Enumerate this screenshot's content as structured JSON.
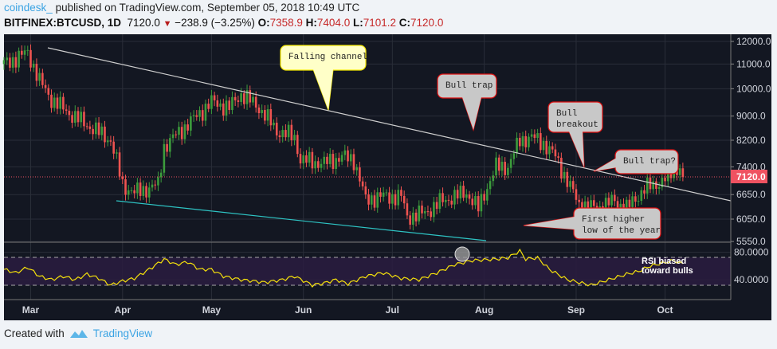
{
  "header": {
    "user": "coindesk_",
    "published": "published on TradingView.com, September 05, 2018 10:49 UTC",
    "symbol": "BITFINEX:BTCUSD, 1D",
    "last": "7120.0",
    "change": "−238.9 (−3.25%)",
    "o_label": "O:",
    "o": "7358.9",
    "h_label": "H:",
    "h": "7404.0",
    "l_label": "L:",
    "l": "7101.2",
    "c_label": "C:",
    "c": "7120.0"
  },
  "footer": {
    "created": "Created with",
    "brand": "TradingView"
  },
  "colors": {
    "bg": "#131722",
    "up": "#26a69a",
    "upc": "#3c9c3c",
    "down": "#ef5350",
    "rsi": "#f5e10b",
    "price_tag": "#ef5261",
    "channel_upper": "#cfcfcf",
    "channel_lower": "#2ec4c4"
  },
  "chart_data": {
    "type": "candlestick",
    "price_axis": {
      "scale": "log",
      "ticks": [
        "12000.0",
        "11000.0",
        "10000.0",
        "9000.0",
        "8200.0",
        "7400.0",
        "6650.0",
        "6050.0",
        "5550.0"
      ],
      "last_price_label": "7120.0"
    },
    "rsi_axis": {
      "ticks": [
        "80.0000",
        "40.0000"
      ],
      "bands": [
        30,
        70
      ]
    },
    "time_axis": [
      "Mar",
      "Apr",
      "May",
      "Jun",
      "Jul",
      "Aug",
      "Sep",
      "Oct"
    ],
    "close_keypoints": [
      [
        0,
        11000
      ],
      [
        8,
        11500
      ],
      [
        12,
        10300
      ],
      [
        16,
        9600
      ],
      [
        22,
        9100
      ],
      [
        28,
        8700
      ],
      [
        36,
        8200
      ],
      [
        40,
        6900
      ],
      [
        44,
        6700
      ],
      [
        52,
        6900
      ],
      [
        54,
        8000
      ],
      [
        64,
        8900
      ],
      [
        70,
        9500
      ],
      [
        76,
        9300
      ],
      [
        80,
        9800
      ],
      [
        86,
        9300
      ],
      [
        92,
        8500
      ],
      [
        98,
        8300
      ],
      [
        100,
        7600
      ],
      [
        108,
        7500
      ],
      [
        114,
        7700
      ],
      [
        118,
        7600
      ],
      [
        122,
        6500
      ],
      [
        126,
        6600
      ],
      [
        134,
        6600
      ],
      [
        136,
        6100
      ],
      [
        142,
        6200
      ],
      [
        148,
        6500
      ],
      [
        156,
        6700
      ],
      [
        160,
        6300
      ],
      [
        166,
        7400
      ],
      [
        170,
        7400
      ],
      [
        174,
        8200
      ],
      [
        178,
        8300
      ],
      [
        182,
        8100
      ],
      [
        186,
        7700
      ],
      [
        190,
        7000
      ],
      [
        194,
        6400
      ],
      [
        200,
        6300
      ],
      [
        206,
        6500
      ],
      [
        210,
        6300
      ],
      [
        216,
        6800
      ],
      [
        222,
        7000
      ],
      [
        226,
        7300
      ],
      [
        228,
        7359
      ],
      [
        229,
        7120
      ]
    ],
    "rsi_keypoints": [
      [
        0,
        55
      ],
      [
        4,
        50
      ],
      [
        8,
        58
      ],
      [
        12,
        45
      ],
      [
        16,
        40
      ],
      [
        20,
        45
      ],
      [
        24,
        40
      ],
      [
        28,
        48
      ],
      [
        32,
        42
      ],
      [
        36,
        32
      ],
      [
        40,
        38
      ],
      [
        44,
        42
      ],
      [
        50,
        58
      ],
      [
        54,
        70
      ],
      [
        58,
        62
      ],
      [
        62,
        66
      ],
      [
        66,
        55
      ],
      [
        70,
        55
      ],
      [
        74,
        45
      ],
      [
        80,
        40
      ],
      [
        84,
        38
      ],
      [
        88,
        36
      ],
      [
        94,
        40
      ],
      [
        98,
        45
      ],
      [
        104,
        32
      ],
      [
        108,
        35
      ],
      [
        112,
        40
      ],
      [
        116,
        34
      ],
      [
        122,
        45
      ],
      [
        128,
        50
      ],
      [
        134,
        42
      ],
      [
        140,
        40
      ],
      [
        146,
        50
      ],
      [
        152,
        62
      ],
      [
        158,
        68
      ],
      [
        166,
        70
      ],
      [
        170,
        72
      ],
      [
        174,
        82
      ],
      [
        176,
        70
      ],
      [
        180,
        72
      ],
      [
        184,
        55
      ],
      [
        190,
        40
      ],
      [
        194,
        36
      ],
      [
        198,
        32
      ],
      [
        204,
        40
      ],
      [
        210,
        48
      ],
      [
        214,
        52
      ],
      [
        218,
        60
      ],
      [
        222,
        64
      ],
      [
        226,
        68
      ],
      [
        228,
        64
      ]
    ],
    "trendlines": [
      {
        "name": "falling-channel-upper",
        "from": [
          "2018-03-05",
          11700
        ],
        "to": [
          "2018-10-20",
          6450
        ]
      },
      {
        "name": "falling-channel-lower",
        "from": [
          "2018-04-01",
          6600
        ],
        "to": [
          "2018-08-01",
          5500
        ]
      }
    ],
    "annotations": {
      "falling_channel": "Falling channel",
      "bull_trap": "Bull trap",
      "bull_breakout_1": "Bull",
      "bull_breakout_2": "breakout",
      "bull_trap_q": "Bull trap?",
      "higher_low_1": "First higher",
      "higher_low_2": "low of the year",
      "rsi_1": "RSI biased",
      "rsi_2": "toward bulls"
    }
  }
}
